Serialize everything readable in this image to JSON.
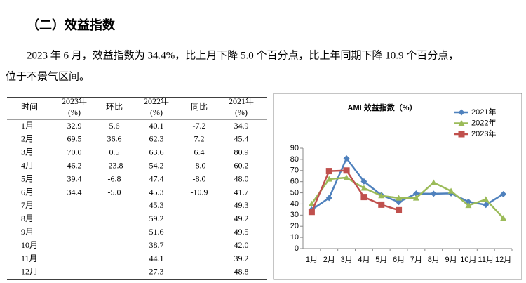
{
  "heading": "（二）效益指数",
  "paragraph": [
    "2023 年 6 月，效益指数为 34.4%，比上月下降 5.0 个百分点，比上年同期下降 10.9 个百分点，",
    "位于不景气区间。"
  ],
  "table": {
    "columns": [
      [
        "时间"
      ],
      [
        "2023年",
        "(%)"
      ],
      [
        "环比"
      ],
      [
        "2022年",
        "(%)"
      ],
      [
        "同比"
      ],
      [
        "2021年",
        "(%)"
      ]
    ],
    "rows": [
      [
        "1月",
        "32.9",
        "5.6",
        "40.1",
        "-7.2",
        "34.9"
      ],
      [
        "2月",
        "69.5",
        "36.6",
        "62.3",
        "7.2",
        "45.4"
      ],
      [
        "3月",
        "70.0",
        "0.5",
        "63.6",
        "6.4",
        "80.9"
      ],
      [
        "4月",
        "46.2",
        "-23.8",
        "54.2",
        "-8.0",
        "60.2"
      ],
      [
        "5月",
        "39.4",
        "-6.8",
        "47.4",
        "-8.0",
        "48.0"
      ],
      [
        "6月",
        "34.4",
        "-5.0",
        "45.3",
        "-10.9",
        "41.7"
      ],
      [
        "7月",
        null,
        null,
        "45.3",
        null,
        "49.3"
      ],
      [
        "8月",
        null,
        null,
        "59.2",
        null,
        "49.2"
      ],
      [
        "9月",
        null,
        null,
        "51.6",
        null,
        "49.5"
      ],
      [
        "10月",
        null,
        null,
        "38.7",
        null,
        "42.0"
      ],
      [
        "11月",
        null,
        null,
        "44.1",
        null,
        "39.2"
      ],
      [
        "12月",
        null,
        null,
        "27.3",
        null,
        "48.8"
      ]
    ]
  },
  "chart_data": {
    "type": "line",
    "title": "AMI 效益指数（%）",
    "categories": [
      "1月",
      "2月",
      "3月",
      "4月",
      "5月",
      "6月",
      "7月",
      "8月",
      "9月",
      "10月",
      "11月",
      "12月"
    ],
    "series": [
      {
        "name": "2021年",
        "color": "#4f81bd",
        "marker": "diamond",
        "values": [
          34.9,
          45.4,
          80.9,
          60.2,
          48.0,
          41.7,
          49.3,
          49.2,
          49.5,
          42.0,
          39.2,
          48.8
        ]
      },
      {
        "name": "2022年",
        "color": "#9bbb59",
        "marker": "triangle",
        "values": [
          40.1,
          62.3,
          63.6,
          54.2,
          47.4,
          45.3,
          45.3,
          59.2,
          51.6,
          38.7,
          44.1,
          27.3
        ]
      },
      {
        "name": "2023年",
        "color": "#c0504d",
        "marker": "square",
        "values": [
          32.9,
          69.5,
          70.0,
          46.2,
          39.4,
          34.4,
          null,
          null,
          null,
          null,
          null,
          null
        ]
      }
    ],
    "ylim": [
      0,
      90
    ],
    "yticks": [
      0,
      10,
      20,
      30,
      40,
      50,
      60,
      70,
      80,
      90
    ],
    "grid": false,
    "legend": "upper right"
  }
}
